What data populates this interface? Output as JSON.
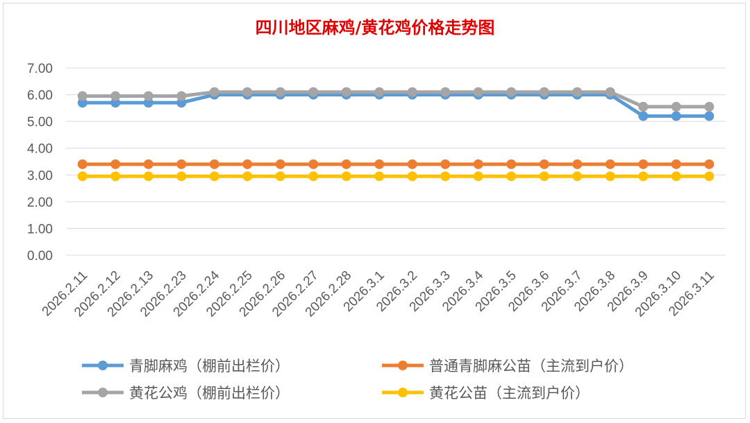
{
  "chart_data": {
    "type": "line",
    "title": "四川地区麻鸡/黄花鸡价格走势图",
    "xlabel": "",
    "ylabel": "",
    "ylim": [
      0,
      7
    ],
    "yticks": [
      "0.00",
      "1.00",
      "2.00",
      "3.00",
      "4.00",
      "5.00",
      "6.00",
      "7.00"
    ],
    "grid": true,
    "legend_position": "bottom",
    "categories": [
      "2026.2.11",
      "2026.2.12",
      "2026.2.13",
      "2026.2.23",
      "2026.2.24",
      "2026.2.25",
      "2026.2.26",
      "2026.2.27",
      "2026.2.28",
      "2026.3.1",
      "2026.3.2",
      "2026.3.3",
      "2026.3.4",
      "2026.3.5",
      "2026.3.6",
      "2026.3.7",
      "2026.3.8",
      "2026.3.9",
      "2026.3.10",
      "2026.3.11"
    ],
    "series": [
      {
        "name": "青脚麻鸡（棚前出栏价）",
        "color": "#5b9bd5",
        "values": [
          5.7,
          5.7,
          5.7,
          5.7,
          6.0,
          6.0,
          6.0,
          6.0,
          6.0,
          6.0,
          6.0,
          6.0,
          6.0,
          6.0,
          6.0,
          6.0,
          6.0,
          5.2,
          5.2,
          5.2
        ]
      },
      {
        "name": "普通青脚麻公苗（主流到户价）",
        "color": "#ed7d31",
        "values": [
          3.4,
          3.4,
          3.4,
          3.4,
          3.4,
          3.4,
          3.4,
          3.4,
          3.4,
          3.4,
          3.4,
          3.4,
          3.4,
          3.4,
          3.4,
          3.4,
          3.4,
          3.4,
          3.4,
          3.4
        ]
      },
      {
        "name": "黄花公鸡（棚前出栏价）",
        "color": "#a5a5a5",
        "values": [
          5.95,
          5.95,
          5.95,
          5.95,
          6.1,
          6.1,
          6.1,
          6.1,
          6.1,
          6.1,
          6.1,
          6.1,
          6.1,
          6.1,
          6.1,
          6.1,
          6.1,
          5.55,
          5.55,
          5.55
        ]
      },
      {
        "name": "黄花公苗（主流到户价）",
        "color": "#ffc000",
        "values": [
          2.95,
          2.95,
          2.95,
          2.95,
          2.95,
          2.95,
          2.95,
          2.95,
          2.95,
          2.95,
          2.95,
          2.95,
          2.95,
          2.95,
          2.95,
          2.95,
          2.95,
          2.95,
          2.95,
          2.95
        ]
      }
    ]
  }
}
